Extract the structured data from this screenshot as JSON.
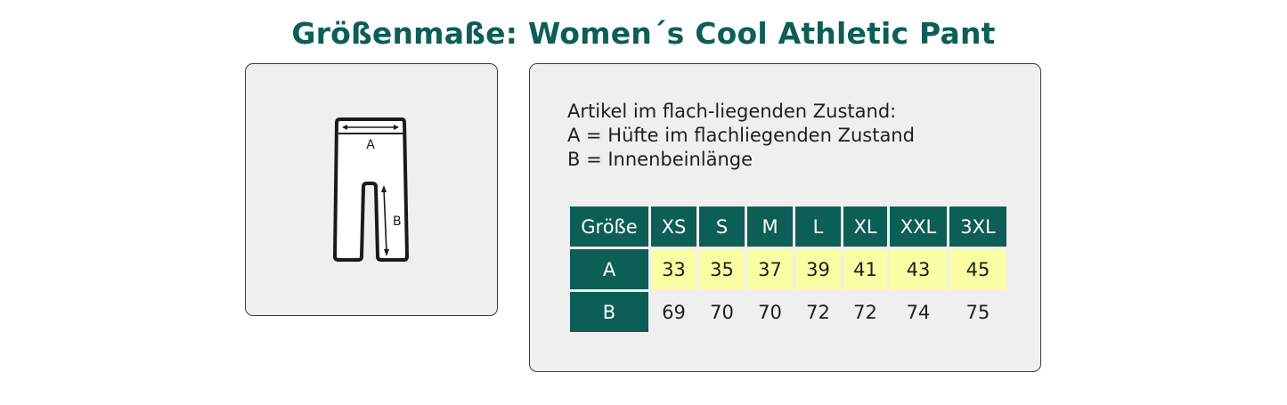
{
  "title": "Größenmaße: Women´s Cool Athletic Pant",
  "illustration": {
    "icon": "pants-measurement-icon",
    "label_a": "A",
    "label_b": "B"
  },
  "description": {
    "line1": "Artikel im flach-liegenden Zustand:",
    "line2": "A = Hüfte im flachliegenden Zustand",
    "line3": "B = Innenbeinlänge"
  },
  "size_table": {
    "header_label": "Größe",
    "sizes": [
      "XS",
      "S",
      "M",
      "L",
      "XL",
      "XXL",
      "3XL"
    ],
    "rows": [
      {
        "label": "A",
        "values": [
          "33",
          "35",
          "37",
          "39",
          "41",
          "43",
          "45"
        ]
      },
      {
        "label": "B",
        "values": [
          "69",
          "70",
          "70",
          "72",
          "72",
          "74",
          "75"
        ]
      }
    ]
  },
  "colors": {
    "brand_green": "#0c5e57",
    "highlight_yellow": "#fbfda4",
    "panel_bg": "#efefef"
  }
}
